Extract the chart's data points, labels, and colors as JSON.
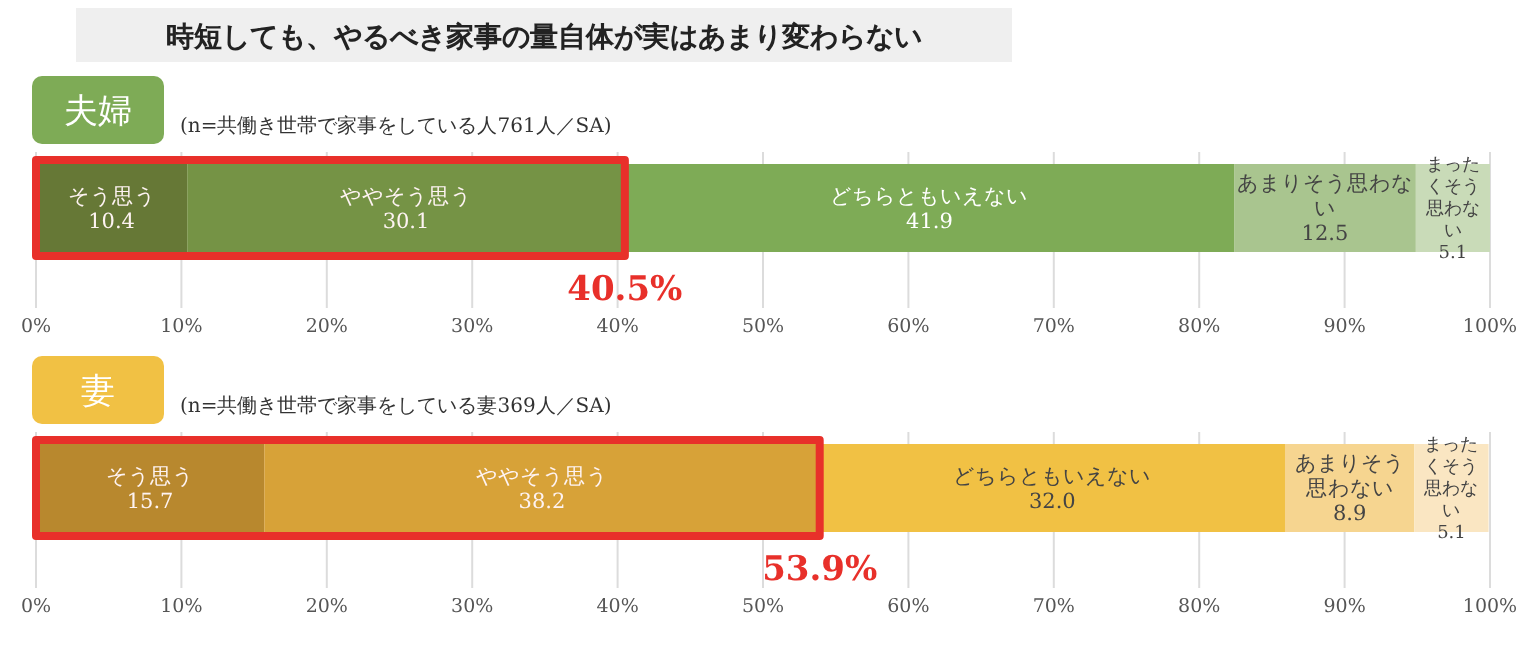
{
  "chart_data": [
    {
      "type": "bar",
      "orientation": "horizontal",
      "stacked": true,
      "title": "時短しても、やるべき家事の量自体が実はあまり変わらない",
      "subtitle": "夫婦",
      "annotations": [
        "(n=共働き世帯で家事をしている人761人／SA)"
      ],
      "bands": [
        {
          "axis": "x",
          "from": 0,
          "to": 40.5,
          "label": "40.5%",
          "color": "#e8302a"
        }
      ],
      "categories": [
        null
      ],
      "xlim": [
        0,
        100
      ],
      "xticks": [
        {
          "value": 0,
          "label": "0%"
        },
        {
          "value": 10,
          "label": "10%"
        },
        {
          "value": 20,
          "label": "20%"
        },
        {
          "value": 30,
          "label": "30%"
        },
        {
          "value": 40,
          "label": "40%"
        },
        {
          "value": 50,
          "label": "50%"
        },
        {
          "value": 60,
          "label": "60%"
        },
        {
          "value": 70,
          "label": "70%"
        },
        {
          "value": 80,
          "label": "80%"
        },
        {
          "value": 90,
          "label": "90%"
        },
        {
          "value": 100,
          "label": "100%"
        }
      ],
      "grid": "x",
      "series": [
        {
          "name": "そう思う",
          "color": "#5e7d38",
          "values": [
            10.4
          ],
          "value_labels": [
            "10.4"
          ]
        },
        {
          "name": "ややそう思う",
          "color": "#6e9a48",
          "values": [
            30.1
          ],
          "value_labels": [
            "30.1"
          ]
        },
        {
          "name": "どちらともいえない",
          "color": "#7eab56",
          "values": [
            41.9
          ],
          "value_labels": [
            "41.9"
          ]
        },
        {
          "name": "あまりそう思わない",
          "color": "#a9c58f",
          "values": [
            12.5
          ],
          "value_labels": [
            "12.5"
          ]
        },
        {
          "name": "まったくそう思わない",
          "color": "#c9dbb8",
          "values": [
            5.1
          ],
          "value_labels": [
            "5.1"
          ]
        }
      ]
    },
    {
      "type": "bar",
      "orientation": "horizontal",
      "stacked": true,
      "subtitle": "妻",
      "annotations": [
        "(n=共働き世帯で家事をしている妻369人／SA)"
      ],
      "bands": [
        {
          "axis": "x",
          "from": 0,
          "to": 53.9,
          "label": "53.9%",
          "color": "#e8302a"
        }
      ],
      "categories": [
        null
      ],
      "xlim": [
        0,
        100
      ],
      "xticks": [
        {
          "value": 0,
          "label": "0%"
        },
        {
          "value": 10,
          "label": "10%"
        },
        {
          "value": 20,
          "label": "20%"
        },
        {
          "value": 30,
          "label": "30%"
        },
        {
          "value": 40,
          "label": "40%"
        },
        {
          "value": 50,
          "label": "50%"
        },
        {
          "value": 60,
          "label": "60%"
        },
        {
          "value": 70,
          "label": "70%"
        },
        {
          "value": 80,
          "label": "80%"
        },
        {
          "value": 90,
          "label": "90%"
        },
        {
          "value": 100,
          "label": "100%"
        }
      ],
      "grid": "x",
      "series": [
        {
          "name": "そう思う",
          "color": "#b58e2f",
          "values": [
            15.7
          ],
          "value_labels": [
            "15.7"
          ]
        },
        {
          "name": "ややそう思う",
          "color": "#d6a93a",
          "values": [
            38.2
          ],
          "value_labels": [
            "38.2"
          ]
        },
        {
          "name": "どちらともいえない",
          "color": "#f1c144",
          "values": [
            32.0
          ],
          "value_labels": [
            "32.0"
          ]
        },
        {
          "name": "あまりそう思わない",
          "color": "#f6d590",
          "values": [
            8.9
          ],
          "value_labels": [
            "8.9"
          ]
        },
        {
          "name": "まったくそう思わない",
          "color": "#fae6c2",
          "values": [
            5.1
          ],
          "value_labels": [
            "5.1"
          ]
        }
      ]
    }
  ]
}
